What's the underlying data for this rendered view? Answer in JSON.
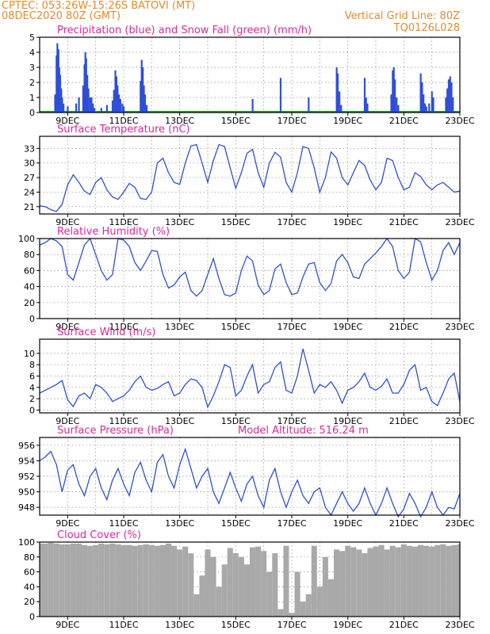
{
  "header": {
    "line1_left": "CPTEC:   053:26W-15:26S   BATOVI (MT)",
    "line2_left": "08DEC2020 80Z (GMT)",
    "line2_right": "Vertical Grid Line: 80Z",
    "line3_right": "TQ0126L028"
  },
  "colors": {
    "header": "#e58a2c",
    "title": "#e0269a",
    "line": "#2f4fd8",
    "bar": "#2f4fd8",
    "snow": "#1fa81f",
    "cloud": "#a9a9a9",
    "grid": "#888888"
  },
  "x_ticks": [
    "9DEC",
    "11DEC",
    "13DEC",
    "15DEC",
    "17DEC",
    "19DEC",
    "21DEC",
    "23DEC"
  ],
  "chart_data": [
    {
      "type": "bar",
      "title": "Precipitation (blue) and Snow Fall (green) (mm/h)",
      "ylim": [
        0,
        5
      ],
      "yticks": [
        "0",
        "1",
        "2",
        "3",
        "4",
        "5"
      ],
      "series": [
        {
          "name": "Precipitation",
          "values": [
            [
              8.55,
              1.2
            ],
            [
              8.6,
              3.8
            ],
            [
              8.63,
              4.6
            ],
            [
              8.67,
              4.2
            ],
            [
              8.7,
              3.0
            ],
            [
              8.73,
              2.5
            ],
            [
              8.77,
              1.6
            ],
            [
              8.8,
              1.0
            ],
            [
              8.85,
              0.6
            ],
            [
              9.0,
              0.4
            ],
            [
              9.3,
              0.6
            ],
            [
              9.4,
              1.0
            ],
            [
              9.55,
              1.8
            ],
            [
              9.6,
              3.2
            ],
            [
              9.63,
              4.0
            ],
            [
              9.66,
              3.6
            ],
            [
              9.7,
              2.5
            ],
            [
              9.74,
              1.6
            ],
            [
              9.8,
              1.0
            ],
            [
              9.85,
              1.0
            ],
            [
              9.9,
              0.6
            ],
            [
              9.95,
              0.3
            ],
            [
              10.2,
              0.3
            ],
            [
              10.4,
              0.5
            ],
            [
              10.6,
              0.8
            ],
            [
              10.65,
              1.5
            ],
            [
              10.7,
              2.8
            ],
            [
              10.74,
              2.4
            ],
            [
              10.78,
              1.8
            ],
            [
              10.83,
              1.2
            ],
            [
              10.88,
              0.9
            ],
            [
              10.95,
              0.6
            ],
            [
              11.0,
              0.4
            ],
            [
              11.6,
              2.1
            ],
            [
              11.64,
              3.5
            ],
            [
              11.68,
              3.0
            ],
            [
              11.72,
              1.8
            ],
            [
              11.76,
              1.2
            ],
            [
              11.82,
              0.5
            ],
            [
              15.6,
              0.9
            ],
            [
              16.6,
              2.3
            ],
            [
              17.6,
              1.0
            ],
            [
              18.6,
              3.0
            ],
            [
              18.64,
              2.6
            ],
            [
              18.7,
              1.4
            ],
            [
              18.76,
              0.5
            ],
            [
              19.6,
              2.3
            ],
            [
              19.65,
              1.0
            ],
            [
              19.7,
              0.6
            ],
            [
              20.55,
              1.2
            ],
            [
              20.6,
              2.8
            ],
            [
              20.64,
              3.0
            ],
            [
              20.68,
              2.2
            ],
            [
              20.74,
              1.0
            ],
            [
              20.8,
              0.5
            ],
            [
              21.6,
              2.6
            ],
            [
              21.65,
              2.0
            ],
            [
              21.7,
              1.2
            ],
            [
              21.75,
              0.6
            ],
            [
              21.8,
              0.4
            ],
            [
              21.9,
              0.6
            ],
            [
              22.0,
              1.4
            ],
            [
              22.05,
              1.0
            ],
            [
              22.5,
              1.0
            ],
            [
              22.55,
              1.6
            ],
            [
              22.6,
              2.2
            ],
            [
              22.65,
              2.4
            ],
            [
              22.7,
              2.0
            ],
            [
              22.75,
              1.0
            ]
          ]
        },
        {
          "name": "Snow Fall",
          "values": []
        }
      ]
    },
    {
      "type": "line",
      "title": "Surface Temperature (nC)",
      "ylim": [
        19.5,
        35.5
      ],
      "yticks": [
        "21",
        "24",
        "27",
        "30",
        "33"
      ],
      "x": [
        8.0,
        8.2,
        8.4,
        8.6,
        8.8,
        9.0,
        9.2,
        9.4,
        9.6,
        9.8,
        10.0,
        10.2,
        10.4,
        10.6,
        10.8,
        11.0,
        11.2,
        11.4,
        11.6,
        11.8,
        12.0,
        12.2,
        12.4,
        12.6,
        12.8,
        13.0,
        13.2,
        13.4,
        13.6,
        13.8,
        14.0,
        14.2,
        14.4,
        14.6,
        14.8,
        15.0,
        15.2,
        15.4,
        15.6,
        15.8,
        16.0,
        16.2,
        16.4,
        16.6,
        16.8,
        17.0,
        17.2,
        17.4,
        17.6,
        17.8,
        18.0,
        18.2,
        18.4,
        18.6,
        18.8,
        19.0,
        19.2,
        19.4,
        19.6,
        19.8,
        20.0,
        20.2,
        20.4,
        20.6,
        20.8,
        21.0,
        21.2,
        21.4,
        21.6,
        21.8,
        22.0,
        22.2,
        22.4,
        22.6,
        22.8,
        23.0
      ],
      "values": [
        21.2,
        21.0,
        20.4,
        20.0,
        21.5,
        25.5,
        27.6,
        26.0,
        24.2,
        23.5,
        26.0,
        27.0,
        24.5,
        23.0,
        22.5,
        24.0,
        25.8,
        25.0,
        22.7,
        22.5,
        24.0,
        30.0,
        31.0,
        28.0,
        26.0,
        25.6,
        30.0,
        33.5,
        33.8,
        30.0,
        26.0,
        30.5,
        33.8,
        33.4,
        29.0,
        24.8,
        28.0,
        32.0,
        32.8,
        28.0,
        25.0,
        30.0,
        32.2,
        31.2,
        26.0,
        24.0,
        28.0,
        33.4,
        33.0,
        29.0,
        24.0,
        27.0,
        32.3,
        31.0,
        27.0,
        25.5,
        28.0,
        30.5,
        29.5,
        26.5,
        24.5,
        26.0,
        31.0,
        30.5,
        27.0,
        24.5,
        25.0,
        28.0,
        27.2,
        25.5,
        24.5,
        25.5,
        26.0,
        25.0,
        24.0,
        24.2
      ]
    },
    {
      "type": "line",
      "title": "Relative Humidity (%)",
      "ylim": [
        0,
        100
      ],
      "yticks": [
        "0",
        "20",
        "40",
        "60",
        "80",
        "100"
      ],
      "x": [
        8.0,
        8.2,
        8.4,
        8.6,
        8.8,
        9.0,
        9.2,
        9.4,
        9.6,
        9.8,
        10.0,
        10.2,
        10.4,
        10.6,
        10.8,
        11.0,
        11.2,
        11.4,
        11.6,
        11.8,
        12.0,
        12.2,
        12.4,
        12.6,
        12.8,
        13.0,
        13.2,
        13.4,
        13.6,
        13.8,
        14.0,
        14.2,
        14.4,
        14.6,
        14.8,
        15.0,
        15.2,
        15.4,
        15.6,
        15.8,
        16.0,
        16.2,
        16.4,
        16.6,
        16.8,
        17.0,
        17.2,
        17.4,
        17.6,
        17.8,
        18.0,
        18.2,
        18.4,
        18.6,
        18.8,
        19.0,
        19.2,
        19.4,
        19.6,
        19.8,
        20.0,
        20.2,
        20.4,
        20.6,
        20.8,
        21.0,
        21.2,
        21.4,
        21.6,
        21.8,
        22.0,
        22.2,
        22.4,
        22.6,
        22.8,
        23.0
      ],
      "values": [
        92,
        95,
        100,
        97,
        90,
        55,
        48,
        70,
        92,
        100,
        80,
        60,
        48,
        55,
        100,
        98,
        90,
        70,
        60,
        72,
        85,
        84,
        55,
        38,
        42,
        52,
        58,
        35,
        28,
        35,
        55,
        75,
        50,
        30,
        28,
        32,
        60,
        78,
        72,
        42,
        30,
        35,
        62,
        68,
        45,
        30,
        32,
        52,
        68,
        70,
        45,
        35,
        44,
        72,
        80,
        70,
        52,
        50,
        68,
        75,
        82,
        90,
        100,
        90,
        60,
        50,
        58,
        100,
        96,
        70,
        48,
        60,
        85,
        95,
        80,
        95
      ]
    },
    {
      "type": "line",
      "title": "Surface Wind (m/s)",
      "ylim": [
        -0.5,
        12.5
      ],
      "yticks": [
        "0",
        "2",
        "4",
        "6",
        "8",
        "10"
      ],
      "x": [
        8.0,
        8.2,
        8.4,
        8.6,
        8.8,
        9.0,
        9.2,
        9.4,
        9.6,
        9.8,
        10.0,
        10.2,
        10.4,
        10.6,
        10.8,
        11.0,
        11.2,
        11.4,
        11.6,
        11.8,
        12.0,
        12.2,
        12.4,
        12.6,
        12.8,
        13.0,
        13.2,
        13.4,
        13.6,
        13.8,
        14.0,
        14.2,
        14.4,
        14.6,
        14.8,
        15.0,
        15.2,
        15.4,
        15.6,
        15.8,
        16.0,
        16.2,
        16.4,
        16.6,
        16.8,
        17.0,
        17.2,
        17.4,
        17.6,
        17.8,
        18.0,
        18.2,
        18.4,
        18.6,
        18.8,
        19.0,
        19.2,
        19.4,
        19.6,
        19.8,
        20.0,
        20.2,
        20.4,
        20.6,
        20.8,
        21.0,
        21.2,
        21.4,
        21.6,
        21.8,
        22.0,
        22.2,
        22.4,
        22.6,
        22.8,
        23.0
      ],
      "values": [
        3.0,
        3.5,
        4.0,
        4.5,
        5.2,
        1.8,
        0.6,
        2.5,
        3.0,
        2.0,
        4.5,
        4.0,
        3.0,
        1.5,
        2.0,
        2.5,
        3.5,
        5.0,
        6.0,
        4.0,
        3.5,
        3.8,
        4.5,
        5.0,
        2.5,
        3.0,
        4.5,
        5.5,
        5.2,
        4.0,
        0.5,
        2.5,
        5.0,
        8.0,
        7.5,
        2.5,
        3.5,
        6.0,
        8.0,
        3.0,
        4.5,
        5.0,
        7.5,
        8.5,
        3.5,
        3.0,
        6.0,
        10.8,
        7.0,
        3.0,
        4.5,
        4.0,
        5.0,
        3.5,
        1.2,
        3.5,
        4.0,
        5.0,
        6.5,
        4.0,
        3.5,
        4.2,
        5.5,
        3.0,
        3.0,
        4.5,
        7.0,
        8.0,
        3.5,
        4.0,
        1.5,
        0.8,
        3.0,
        5.5,
        6.5,
        1.5
      ]
    },
    {
      "type": "line",
      "title": "Surface Pressure (hPa)",
      "annotation": "Model Altitude: 516.24 m",
      "ylim": [
        947,
        957
      ],
      "yticks": [
        "948",
        "950",
        "952",
        "954",
        "956"
      ],
      "x": [
        8.0,
        8.2,
        8.4,
        8.6,
        8.8,
        9.0,
        9.2,
        9.4,
        9.6,
        9.8,
        10.0,
        10.2,
        10.4,
        10.6,
        10.8,
        11.0,
        11.2,
        11.4,
        11.6,
        11.8,
        12.0,
        12.2,
        12.4,
        12.6,
        12.8,
        13.0,
        13.2,
        13.4,
        13.6,
        13.8,
        14.0,
        14.2,
        14.4,
        14.6,
        14.8,
        15.0,
        15.2,
        15.4,
        15.6,
        15.8,
        16.0,
        16.2,
        16.4,
        16.6,
        16.8,
        17.0,
        17.2,
        17.4,
        17.6,
        17.8,
        18.0,
        18.2,
        18.4,
        18.6,
        18.8,
        19.0,
        19.2,
        19.4,
        19.6,
        19.8,
        20.0,
        20.2,
        20.4,
        20.6,
        20.8,
        21.0,
        21.2,
        21.4,
        21.6,
        21.8,
        22.0,
        22.2,
        22.4,
        22.6,
        22.8,
        23.0
      ],
      "values": [
        954.0,
        954.5,
        955.2,
        953.5,
        950.0,
        952.8,
        953.5,
        951.0,
        949.5,
        952.0,
        953.0,
        950.5,
        949.0,
        951.5,
        953.0,
        951.0,
        949.5,
        952.5,
        953.8,
        951.5,
        950.0,
        953.8,
        954.8,
        952.0,
        950.5,
        953.5,
        955.5,
        953.0,
        950.5,
        952.0,
        953.0,
        950.0,
        948.5,
        950.5,
        952.5,
        950.5,
        948.8,
        951.0,
        952.0,
        949.5,
        948.0,
        951.5,
        953.0,
        950.0,
        948.0,
        950.0,
        951.5,
        949.5,
        948.5,
        950.0,
        950.5,
        948.0,
        947.0,
        948.5,
        950.0,
        948.5,
        947.5,
        948.5,
        950.5,
        948.5,
        947.0,
        948.5,
        950.5,
        948.5,
        946.8,
        947.8,
        949.8,
        948.5,
        946.8,
        948.0,
        950.0,
        948.0,
        947.0,
        948.0,
        947.8,
        949.8
      ]
    },
    {
      "type": "area",
      "title": "Cloud Cover (%)",
      "ylim": [
        0,
        100
      ],
      "yticks": [
        "0",
        "20",
        "40",
        "60",
        "80",
        "100"
      ],
      "x": [
        8.0,
        8.2,
        8.4,
        8.6,
        8.8,
        9.0,
        9.2,
        9.4,
        9.6,
        9.8,
        10.0,
        10.2,
        10.4,
        10.6,
        10.8,
        11.0,
        11.2,
        11.4,
        11.6,
        11.8,
        12.0,
        12.2,
        12.4,
        12.6,
        12.8,
        13.0,
        13.2,
        13.4,
        13.6,
        13.8,
        14.0,
        14.2,
        14.4,
        14.6,
        14.8,
        15.0,
        15.2,
        15.4,
        15.6,
        15.8,
        16.0,
        16.2,
        16.4,
        16.6,
        16.8,
        17.0,
        17.2,
        17.4,
        17.6,
        17.8,
        18.0,
        18.2,
        18.4,
        18.6,
        18.8,
        19.0,
        19.2,
        19.4,
        19.6,
        19.8,
        20.0,
        20.2,
        20.4,
        20.6,
        20.8,
        21.0,
        21.2,
        21.4,
        21.6,
        21.8,
        22.0,
        22.2,
        22.4,
        22.6,
        22.8,
        23.0
      ],
      "values": [
        98,
        98,
        99,
        98,
        97,
        97,
        98,
        98,
        96,
        95,
        96,
        98,
        97,
        98,
        97,
        96,
        96,
        95,
        96,
        97,
        96,
        95,
        96,
        98,
        95,
        90,
        94,
        85,
        30,
        55,
        90,
        80,
        40,
        70,
        92,
        85,
        80,
        70,
        93,
        94,
        88,
        60,
        85,
        10,
        95,
        5,
        60,
        20,
        30,
        95,
        40,
        80,
        50,
        90,
        88,
        95,
        93,
        90,
        85,
        92,
        94,
        96,
        90,
        95,
        93,
        97,
        95,
        94,
        96,
        95,
        94,
        96,
        97,
        95,
        96,
        97
      ]
    }
  ]
}
